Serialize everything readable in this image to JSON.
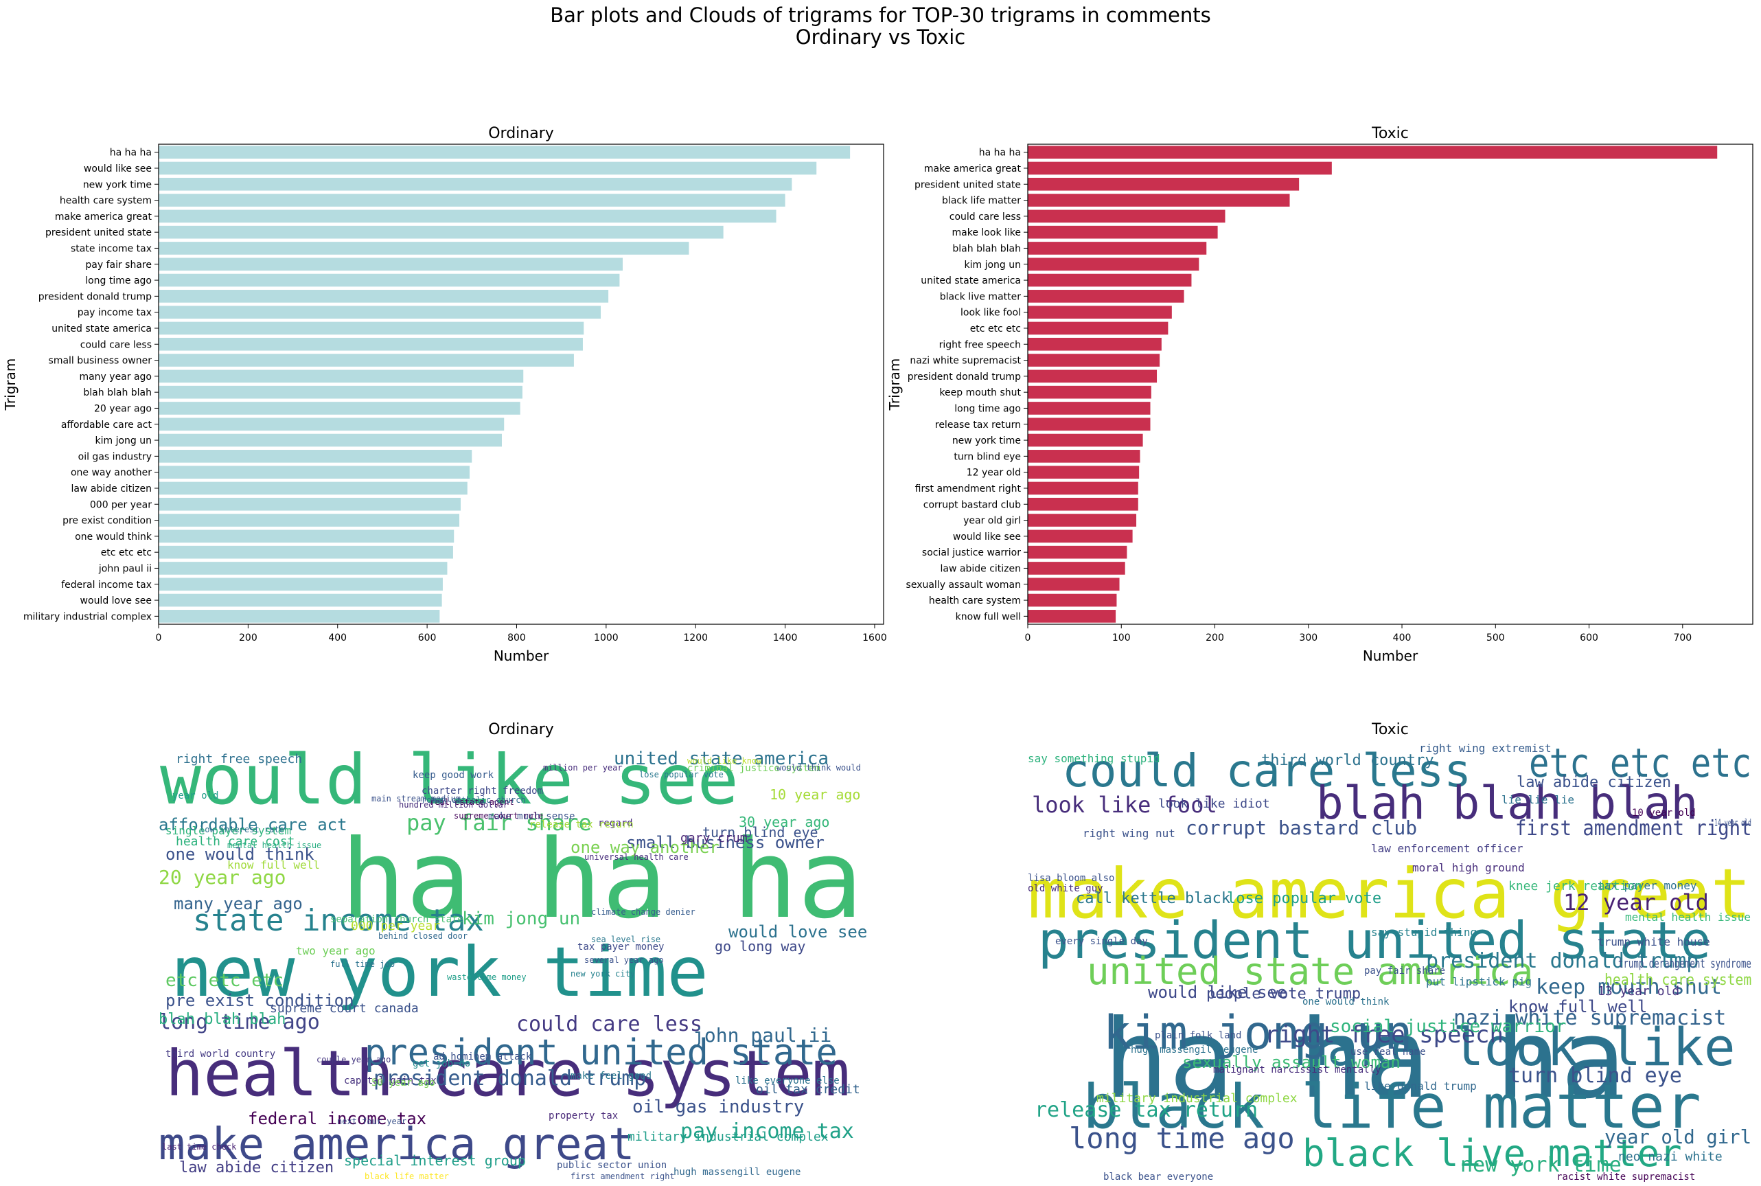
{
  "figure": {
    "title_line1": "Bar plots and Clouds of trigrams for TOP-30 trigrams in comments",
    "title_line2": "Ordinary vs Toxic"
  },
  "chart_data": [
    {
      "type": "bar",
      "orientation": "horizontal",
      "title": "Ordinary",
      "xlabel": "Number",
      "ylabel": "Trigram",
      "color": "#b5dce0",
      "xlim": [
        0,
        1620
      ],
      "xticks": [
        0,
        200,
        400,
        600,
        800,
        1000,
        1200,
        1400,
        1600
      ],
      "categories": [
        "ha ha ha",
        "would like see",
        "new york time",
        "health care system",
        "make america great",
        "president united state",
        "state income tax",
        "pay fair share",
        "long time ago",
        "president donald trump",
        "pay income tax",
        "united state america",
        "could care less",
        "small business owner",
        "many year ago",
        "blah blah blah",
        "20 year ago",
        "affordable care act",
        "kim jong un",
        "oil gas industry",
        "one way another",
        "law abide citizen",
        "000 per year",
        "pre exist condition",
        "one would think",
        "etc etc etc",
        "john paul ii",
        "federal income tax",
        "would love see",
        "military industrial complex"
      ],
      "values": [
        1545,
        1470,
        1415,
        1400,
        1380,
        1262,
        1185,
        1037,
        1030,
        1005,
        988,
        950,
        948,
        928,
        815,
        813,
        808,
        772,
        767,
        700,
        695,
        690,
        675,
        672,
        660,
        658,
        645,
        635,
        633,
        628
      ]
    },
    {
      "type": "bar",
      "orientation": "horizontal",
      "title": "Toxic",
      "xlabel": "Number",
      "ylabel": "Trigram",
      "color": "#c9304f",
      "xlim": [
        0,
        775
      ],
      "xticks": [
        0,
        100,
        200,
        300,
        400,
        500,
        600,
        700
      ],
      "categories": [
        "ha ha ha",
        "make america great",
        "president united state",
        "black life matter",
        "could care less",
        "make look like",
        "blah blah blah",
        "kim jong un",
        "united state america",
        "black live matter",
        "look like fool",
        "etc etc etc",
        "right free speech",
        "nazi white supremacist",
        "president donald trump",
        "keep mouth shut",
        "long time ago",
        "release tax return",
        "new york time",
        "turn blind eye",
        "12 year old",
        "first amendment right",
        "corrupt bastard club",
        "year old girl",
        "would like see",
        "social justice warrior",
        "law abide citizen",
        "sexually assault woman",
        "health care system",
        "know full well"
      ],
      "values": [
        737,
        325,
        290,
        280,
        211,
        203,
        191,
        183,
        175,
        167,
        154,
        150,
        143,
        141,
        138,
        132,
        131,
        131,
        123,
        120,
        119,
        118,
        118,
        116,
        112,
        106,
        104,
        98,
        95,
        94
      ]
    }
  ],
  "clouds": [
    {
      "title": "Ordinary",
      "words": [
        {
          "text": "would like see",
          "color": "#35b779"
        },
        {
          "text": "ha ha ha",
          "color": "#3fbc73"
        },
        {
          "text": "new york time",
          "color": "#21918c"
        },
        {
          "text": "health care system",
          "color": "#472d7b"
        },
        {
          "text": "make america great",
          "color": "#3e4989"
        },
        {
          "text": "president united state",
          "color": "#31688e"
        },
        {
          "text": "state income tax",
          "color": "#26828e"
        },
        {
          "text": "pay fair share",
          "color": "#4ac16d"
        },
        {
          "text": "united state america",
          "color": "#2c728e"
        },
        {
          "text": "long time ago",
          "color": "#414487"
        },
        {
          "text": "president donald trump",
          "color": "#365c8d"
        },
        {
          "text": "small business owner",
          "color": "#3b528b"
        },
        {
          "text": "one way another",
          "color": "#7ad151"
        },
        {
          "text": "affordable care act",
          "color": "#2a788e"
        },
        {
          "text": "could care less",
          "color": "#443a83"
        },
        {
          "text": "john paul ii",
          "color": "#31688e"
        },
        {
          "text": "pay income tax",
          "color": "#1fa187"
        },
        {
          "text": "kim jong un",
          "color": "#46c06f"
        },
        {
          "text": "would love see",
          "color": "#2c728e"
        },
        {
          "text": "one would think",
          "color": "#3b528b"
        },
        {
          "text": "20 year ago",
          "color": "#8fd744"
        },
        {
          "text": "many year ago",
          "color": "#33638d"
        },
        {
          "text": "pre exist condition",
          "color": "#3b528b"
        },
        {
          "text": "law abide citizen",
          "color": "#433e85"
        },
        {
          "text": "federal income tax",
          "color": "#440154"
        },
        {
          "text": "oil gas industry",
          "color": "#3b528b"
        },
        {
          "text": "blah blah blah",
          "color": "#28ae80"
        },
        {
          "text": "etc etc etc",
          "color": "#5ec962"
        },
        {
          "text": "000 per year",
          "color": "#b5de2b"
        },
        {
          "text": "right free speech",
          "color": "#2d708e"
        },
        {
          "text": "single payer system",
          "color": "#2fb47c"
        },
        {
          "text": "health care cost",
          "color": "#2db27d"
        },
        {
          "text": "military industrial complex",
          "color": "#1f9e89"
        },
        {
          "text": "10 year ago",
          "color": "#a5db36"
        },
        {
          "text": "30 year ago",
          "color": "#35b779"
        },
        {
          "text": "turn blind eye",
          "color": "#3b528b"
        },
        {
          "text": "go long way",
          "color": "#3e4989"
        },
        {
          "text": "oil tax credit",
          "color": "#33638d"
        },
        {
          "text": "special interest group",
          "color": "#1f9e89"
        },
        {
          "text": "two year ago",
          "color": "#6ece58"
        },
        {
          "text": "know full well",
          "color": "#a0da39"
        },
        {
          "text": "gary crum",
          "color": "#482475"
        },
        {
          "text": "third world country",
          "color": "#443a83"
        },
        {
          "text": "capital gain tax",
          "color": "#46327e"
        },
        {
          "text": "keep good work",
          "color": "#365c8d"
        },
        {
          "text": "50 year ago",
          "color": "#7ad151"
        },
        {
          "text": "make feel good",
          "color": "#2a788e"
        },
        {
          "text": "like everyone else",
          "color": "#2c728e"
        },
        {
          "text": "property tax",
          "color": "#482878"
        },
        {
          "text": "public sector union",
          "color": "#3b528b"
        },
        {
          "text": "hugh massengill eugene",
          "color": "#31688e"
        },
        {
          "text": "mental health issue",
          "color": "#27ad81"
        },
        {
          "text": "black life matter",
          "color": "#fde725"
        },
        {
          "text": "last time check",
          "color": "#482173"
        },
        {
          "text": "first amendment right",
          "color": "#3b528b"
        },
        {
          "text": "regard",
          "color": "#472c7a"
        },
        {
          "text": "lose popular vote",
          "color": "#2a788e"
        },
        {
          "text": "tax payer money",
          "color": "#3e4a89"
        },
        {
          "text": "separation church state",
          "color": "#45bf70"
        },
        {
          "text": "climate change denier",
          "color": "#365c8d"
        },
        {
          "text": "real estate agent",
          "color": "#440154"
        },
        {
          "text": "make much sense",
          "color": "#3b528b"
        },
        {
          "text": "release tax return",
          "color": "#a2da37"
        },
        {
          "text": "universal health care",
          "color": "#472d7b"
        },
        {
          "text": "ad hominem attack",
          "color": "#3b528b"
        },
        {
          "text": "supreme court rule",
          "color": "#46085c"
        },
        {
          "text": "behind closed door",
          "color": "#31688e"
        },
        {
          "text": "criminal justice system",
          "color": "#6ece58"
        },
        {
          "text": "waste time money",
          "color": "#1f9e89"
        },
        {
          "text": "full time job",
          "color": "#2c728e"
        },
        {
          "text": "get job do",
          "color": "#228c8d"
        },
        {
          "text": "charter right freedom",
          "color": "#3e4989"
        },
        {
          "text": "roman catholic church",
          "color": "#31688e"
        },
        {
          "text": "hundred million dollar",
          "color": "#472d7b"
        },
        {
          "text": "low interest rate",
          "color": "#2d708e"
        },
        {
          "text": "would think would",
          "color": "#3b528b"
        },
        {
          "text": "new york city",
          "color": "#26828e"
        },
        {
          "text": "several year ago",
          "color": "#3b528b"
        },
        {
          "text": "sea level rise",
          "color": "#2a788e"
        },
        {
          "text": "couple year ago",
          "color": "#453781"
        },
        {
          "text": "next four year",
          "color": "#3b528b"
        },
        {
          "text": "year old",
          "color": "#1f9e89"
        },
        {
          "text": "main stream medium",
          "color": "#3b528b"
        },
        {
          "text": "million per year",
          "color": "#472d7b"
        },
        {
          "text": "would like know",
          "color": "#b8de29"
        },
        {
          "text": "supreme court canada",
          "color": "#3b528b"
        }
      ]
    },
    {
      "title": "Toxic",
      "words": [
        {
          "text": "make america great",
          "color": "#dfe318"
        },
        {
          "text": "ha ha ha",
          "color": "#2c728e"
        },
        {
          "text": "president united state",
          "color": "#26828e"
        },
        {
          "text": "black life matter",
          "color": "#2a788e"
        },
        {
          "text": "could care less",
          "color": "#2a788e"
        },
        {
          "text": "blah blah blah",
          "color": "#472d7b"
        },
        {
          "text": "etc etc etc",
          "color": "#2c728e"
        },
        {
          "text": "make look like",
          "color": "#2c728e"
        },
        {
          "text": "kim jong un",
          "color": "#31688e"
        },
        {
          "text": "united state america",
          "color": "#6ece58"
        },
        {
          "text": "black live matter",
          "color": "#22a884"
        },
        {
          "text": "look like fool",
          "color": "#472d7b"
        },
        {
          "text": "right free speech",
          "color": "#3e4989"
        },
        {
          "text": "nazi white supremacist",
          "color": "#33638d"
        },
        {
          "text": "president donald trump",
          "color": "#2a788e"
        },
        {
          "text": "keep mouth shut",
          "color": "#31688e"
        },
        {
          "text": "long time ago",
          "color": "#3b528b"
        },
        {
          "text": "release tax return",
          "color": "#20a386"
        },
        {
          "text": "new york time",
          "color": "#29af7f"
        },
        {
          "text": "turn blind eye",
          "color": "#3b528b"
        },
        {
          "text": "12 year old",
          "color": "#482173"
        },
        {
          "text": "first amendment right",
          "color": "#3e4989"
        },
        {
          "text": "corrupt bastard club",
          "color": "#3b528b"
        },
        {
          "text": "year old girl",
          "color": "#31688e"
        },
        {
          "text": "would like see",
          "color": "#3e4989"
        },
        {
          "text": "social justice warrior",
          "color": "#2fb47c"
        },
        {
          "text": "law abide citizen",
          "color": "#3b528b"
        },
        {
          "text": "sexually assault woman",
          "color": "#3bbb75"
        },
        {
          "text": "health care system",
          "color": "#8fd744"
        },
        {
          "text": "know full well",
          "color": "#3e4989"
        },
        {
          "text": "people vote trump",
          "color": "#3e4989"
        },
        {
          "text": "lose popular vote",
          "color": "#1f9e89"
        },
        {
          "text": "call kettle black",
          "color": "#2a788e"
        },
        {
          "text": "third world country",
          "color": "#2c728e"
        },
        {
          "text": "right wing extremist",
          "color": "#365c8d"
        },
        {
          "text": "say something stupid",
          "color": "#2db27d"
        },
        {
          "text": "look like idiot",
          "color": "#3e4989"
        },
        {
          "text": "lie lie lie",
          "color": "#2c728e"
        },
        {
          "text": "trump derangement syndrome",
          "color": "#3b528b"
        },
        {
          "text": "military industrial complex",
          "color": "#8fd744"
        },
        {
          "text": "neo nazi white",
          "color": "#2c728e"
        },
        {
          "text": "13 year old",
          "color": "#46327e"
        },
        {
          "text": "tax payer money",
          "color": "#2c728e"
        },
        {
          "text": "knee jerk reaction",
          "color": "#35b779"
        },
        {
          "text": "pay fair share",
          "color": "#3b528b"
        },
        {
          "text": "law enforcement officer",
          "color": "#433e85"
        },
        {
          "text": "malignant narcissist mentally",
          "color": "#472d7b"
        },
        {
          "text": "plain folk land",
          "color": "#3b528b"
        },
        {
          "text": "trump white house",
          "color": "#3b528b"
        },
        {
          "text": "say stupid thing",
          "color": "#26828e"
        },
        {
          "text": "moral high ground",
          "color": "#472d7b"
        },
        {
          "text": "right wing nut",
          "color": "#3b528b"
        },
        {
          "text": "put lipstick pig",
          "color": "#2c728e"
        },
        {
          "text": "mental health issue",
          "color": "#35b779"
        },
        {
          "text": "like donald trump",
          "color": "#31688e"
        },
        {
          "text": "racist white supremacist",
          "color": "#440154"
        },
        {
          "text": "every single day",
          "color": "#3b528b"
        },
        {
          "text": "lisa bloom also",
          "color": "#3b528b"
        },
        {
          "text": "old white guy",
          "color": "#472d7b"
        },
        {
          "text": "14 year old",
          "color": "#3b528b"
        },
        {
          "text": "hugh massengill eugene",
          "color": "#2c728e"
        },
        {
          "text": "black bear everyone",
          "color": "#3b528b"
        },
        {
          "text": "10 year old",
          "color": "#440154"
        },
        {
          "text": "use real name",
          "color": "#3b528b"
        },
        {
          "text": "one would think",
          "color": "#2c728e"
        }
      ]
    }
  ]
}
